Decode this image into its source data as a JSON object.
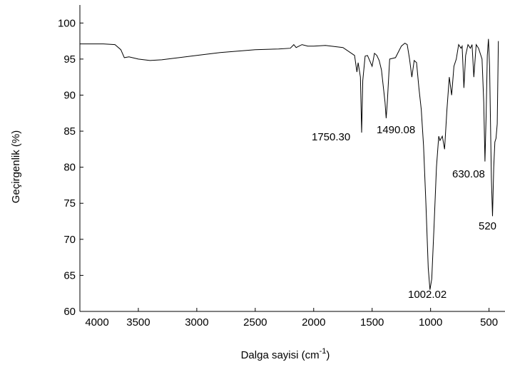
{
  "chart_data": {
    "type": "line",
    "x_label": "Dalga sayisi (cm",
    "x_label_sup": "-1",
    "x_label_end": ")",
    "y_label": "Geçirgenlik (%)",
    "xlim": [
      4000,
      400
    ],
    "ylim": [
      60,
      102.5
    ],
    "xticks": [
      4000,
      3500,
      3000,
      2500,
      2000,
      1500,
      1000,
      500
    ],
    "yticks": [
      60,
      65,
      70,
      75,
      80,
      85,
      90,
      95,
      100
    ],
    "series": [
      {
        "color": "#000000",
        "x": [
          4000,
          3800,
          3700,
          3650,
          3620,
          3580,
          3500,
          3400,
          3300,
          3000,
          2800,
          2500,
          2300,
          2200,
          2170,
          2150,
          2100,
          2050,
          2000,
          1900,
          1750,
          1650,
          1630,
          1620,
          1600,
          1590,
          1580,
          1560,
          1540,
          1500,
          1480,
          1460,
          1440,
          1420,
          1390,
          1380,
          1370,
          1350,
          1300,
          1250,
          1220,
          1200,
          1180,
          1160,
          1140,
          1120,
          1100,
          1080,
          1060,
          1040,
          1020,
          1005,
          990,
          970,
          950,
          930,
          920,
          900,
          880,
          860,
          840,
          820,
          800,
          780,
          760,
          740,
          730,
          715,
          700,
          680,
          660,
          645,
          630,
          610,
          590,
          560,
          545,
          535,
          525,
          515,
          505,
          495,
          480,
          470,
          460,
          450,
          440,
          430,
          420
        ],
        "values": [
          97.1,
          97.1,
          97.0,
          96.3,
          95.2,
          95.3,
          95.0,
          94.8,
          94.9,
          95.5,
          95.9,
          96.3,
          96.4,
          96.5,
          97.0,
          96.6,
          97.0,
          96.8,
          96.8,
          96.9,
          96.6,
          95.5,
          93.2,
          94.5,
          92.5,
          84.8,
          92.0,
          95.4,
          95.5,
          94.0,
          95.8,
          95.5,
          94.8,
          93.5,
          89.0,
          86.8,
          89.0,
          95.0,
          95.2,
          96.8,
          97.2,
          97.0,
          95.0,
          92.5,
          94.8,
          94.5,
          91.0,
          88.0,
          83.0,
          75.0,
          66.0,
          63.0,
          64.5,
          72.0,
          80.0,
          84.3,
          83.7,
          84.3,
          82.5,
          88.0,
          92.5,
          90.0,
          94.0,
          95.0,
          97.0,
          96.5,
          96.8,
          91.0,
          95.5,
          97.0,
          96.5,
          97.0,
          92.5,
          97.0,
          96.5,
          95.0,
          89.0,
          80.8,
          87.0,
          95.5,
          97.8,
          94.0,
          78.5,
          73.2,
          80.0,
          83.5,
          84.0,
          86.0,
          97.5
        ]
      }
    ],
    "annotations": [
      "1750.30",
      "1490.08",
      "1002.02",
      "630.08",
      "520"
    ]
  }
}
